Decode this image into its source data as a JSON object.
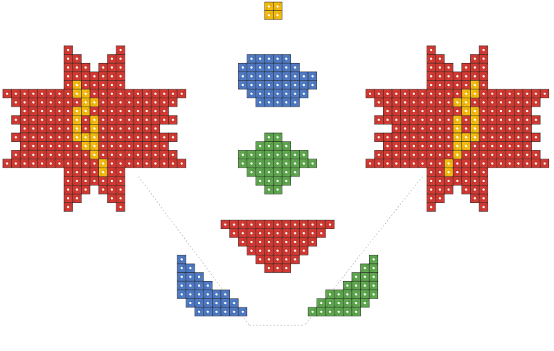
{
  "pattern": {
    "name": "cross-stitch-ornament",
    "colors": {
      "red": "#d03a32",
      "yellow": "#f2b90f",
      "blue": "#4f79c2",
      "green": "#5ea64e",
      "grid_line": "#2a2a2a",
      "background": "#ffffff",
      "stitch_dot": "#ffffff"
    },
    "motifs": [
      {
        "name": "left-star",
        "color": "red"
      },
      {
        "name": "right-star",
        "color": "red"
      },
      {
        "name": "top-yellow-square",
        "color": "yellow"
      },
      {
        "name": "blue-lozenge",
        "color": "blue"
      },
      {
        "name": "green-cross",
        "color": "green"
      },
      {
        "name": "red-triangle",
        "color": "red"
      },
      {
        "name": "blue-leaf",
        "color": "blue"
      },
      {
        "name": "green-leaf",
        "color": "green"
      }
    ]
  }
}
